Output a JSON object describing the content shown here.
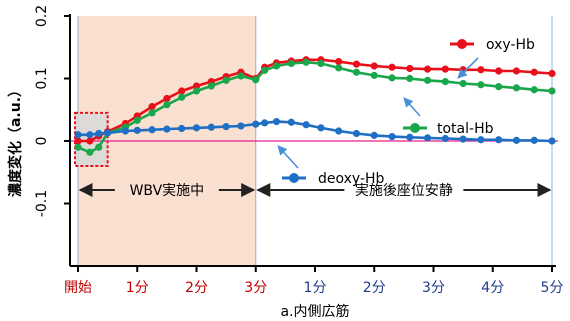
{
  "chart_data": {
    "type": "line",
    "title": "",
    "xlabel": "a.内側広筋",
    "ylabel": "濃度変化（a.u.）",
    "ylim": [
      -0.2,
      0.2
    ],
    "xlim": [
      0,
      9
    ],
    "x_ticks": [
      {
        "x": 0,
        "label": "開始",
        "color": "#c00000"
      },
      {
        "x": 1,
        "label": "1分",
        "color": "#c00000"
      },
      {
        "x": 2,
        "label": "2分",
        "color": "#c00000"
      },
      {
        "x": 3,
        "label": "3分",
        "color": "#c00000"
      },
      {
        "x": 4,
        "label": "1分",
        "color": "#1f3c88"
      },
      {
        "x": 5,
        "label": "2分",
        "color": "#1f3c88"
      },
      {
        "x": 6,
        "label": "3分",
        "color": "#1f3c88"
      },
      {
        "x": 7,
        "label": "4分",
        "color": "#1f3c88"
      },
      {
        "x": 8,
        "label": "5分",
        "color": "#1f3c88"
      }
    ],
    "y_ticks": [
      {
        "y": 0.2,
        "label": "0.2"
      },
      {
        "y": 0.1,
        "label": "0.1"
      },
      {
        "y": 0,
        "label": "0"
      },
      {
        "y": -0.1,
        "label": "-0.1"
      }
    ],
    "series": [
      {
        "name": "oxy-Hb",
        "color": "#e8101a",
        "x": [
          0,
          0.2,
          0.35,
          0.5,
          0.8,
          1.0,
          1.25,
          1.5,
          1.75,
          2.0,
          2.25,
          2.5,
          2.75,
          3.0,
          3.15,
          3.35,
          3.6,
          3.85,
          4.1,
          4.4,
          4.7,
          5.0,
          5.3,
          5.6,
          5.9,
          6.2,
          6.5,
          6.8,
          7.1,
          7.4,
          7.7,
          8.0
        ],
        "values": [
          0.0,
          0.0,
          0.008,
          0.015,
          0.028,
          0.04,
          0.055,
          0.068,
          0.08,
          0.088,
          0.095,
          0.103,
          0.11,
          0.1,
          0.118,
          0.125,
          0.128,
          0.13,
          0.13,
          0.127,
          0.123,
          0.12,
          0.118,
          0.116,
          0.115,
          0.115,
          0.114,
          0.114,
          0.112,
          0.112,
          0.11,
          0.108
        ]
      },
      {
        "name": "total-Hb",
        "color": "#1aa64b",
        "x": [
          0,
          0.2,
          0.35,
          0.5,
          0.8,
          1.0,
          1.25,
          1.5,
          1.75,
          2.0,
          2.25,
          2.5,
          2.75,
          3.0,
          3.15,
          3.35,
          3.6,
          3.85,
          4.1,
          4.4,
          4.7,
          5.0,
          5.3,
          5.6,
          5.9,
          6.2,
          6.5,
          6.8,
          7.1,
          7.4,
          7.7,
          8.0
        ],
        "values": [
          -0.01,
          -0.018,
          -0.01,
          0.013,
          0.022,
          0.033,
          0.045,
          0.058,
          0.07,
          0.08,
          0.088,
          0.097,
          0.104,
          0.098,
          0.113,
          0.12,
          0.124,
          0.126,
          0.124,
          0.117,
          0.11,
          0.105,
          0.101,
          0.1,
          0.097,
          0.095,
          0.092,
          0.09,
          0.087,
          0.085,
          0.082,
          0.08
        ]
      },
      {
        "name": "deoxy-Hb",
        "color": "#1f6fc4",
        "x": [
          0,
          0.2,
          0.35,
          0.5,
          0.8,
          1.0,
          1.25,
          1.5,
          1.75,
          2.0,
          2.25,
          2.5,
          2.75,
          3.0,
          3.15,
          3.35,
          3.6,
          3.85,
          4.1,
          4.4,
          4.7,
          5.0,
          5.3,
          5.6,
          5.9,
          6.2,
          6.5,
          6.8,
          7.1,
          7.4,
          7.7,
          8.0
        ],
        "values": [
          0.01,
          0.01,
          0.012,
          0.013,
          0.016,
          0.017,
          0.018,
          0.019,
          0.02,
          0.021,
          0.022,
          0.023,
          0.024,
          0.027,
          0.029,
          0.031,
          0.03,
          0.026,
          0.021,
          0.016,
          0.012,
          0.009,
          0.007,
          0.006,
          0.005,
          0.004,
          0.003,
          0.002,
          0.002,
          0.001,
          0.001,
          0.0
        ]
      }
    ],
    "annotations": [
      {
        "text": "WBV実施中",
        "from": 0,
        "to": 3
      },
      {
        "text": "実施後座位安静",
        "from": 3,
        "to": 8
      }
    ],
    "shaded_region": {
      "from": 0,
      "to": 3,
      "color": "#f9e0d0"
    },
    "highlight_box": {
      "x_from": -0.05,
      "x_to": 0.5,
      "y_from": -0.04,
      "y_to": 0.045
    },
    "reference_line": {
      "y": 0,
      "color": "#e61e8c"
    },
    "grid": false,
    "legend": "inline labels with arrows"
  }
}
